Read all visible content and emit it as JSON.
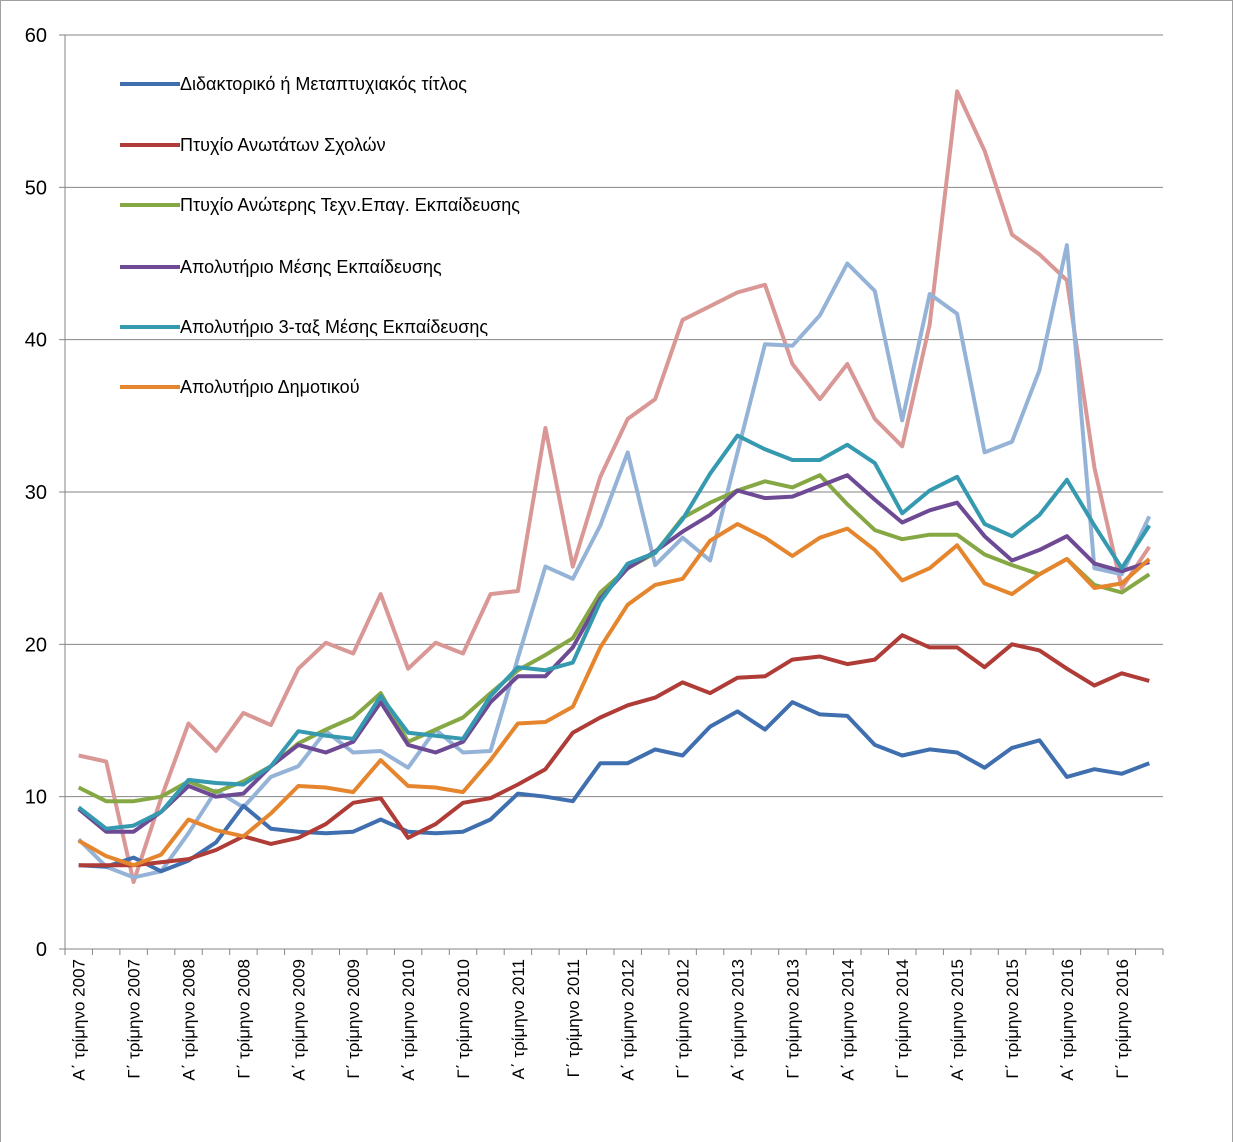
{
  "chart_data": {
    "type": "line",
    "categories": [
      "Α΄ τρίμηνο 2007",
      null,
      "Γ΄ τρίμηνο 2007",
      null,
      "Α΄ τρίμηνο 2008",
      null,
      "Γ΄ τρίμηνο 2008",
      null,
      "Α΄ τρίμηνο 2009",
      null,
      "Γ΄ τρίμηνο 2009",
      null,
      "Α΄ τρίμηνο 2010",
      null,
      "Γ΄ τρίμηνο 2010",
      null,
      "Α΄ τρίμηνο 2011",
      null,
      "Γ΄ τρίμηνο 2011",
      null,
      "Α΄ τρίμηνο 2012",
      null,
      "Γ΄ τρίμηνο 2012",
      null,
      "Α΄ τρίμηνο 2013",
      null,
      "Γ΄ τρίμηνο 2013",
      null,
      "Α΄ τρίμηνο 2014",
      null,
      "Γ΄ τρίμηνο 2014",
      null,
      "Α΄ τρίμηνο 2015",
      null,
      "Γ΄ τρίμηνο 2015",
      null,
      "Α΄ τρίμηνο 2016",
      null,
      "Γ΄ τρίμηνο 2016",
      null
    ],
    "series": [
      {
        "name": "Διδακτορικό ή Μεταπτυχιακός τίτλος",
        "color": "#3f6faf",
        "values": [
          5.5,
          5.4,
          6.0,
          5.1,
          5.8,
          7.0,
          9.4,
          7.9,
          7.7,
          7.6,
          7.7,
          8.5,
          7.7,
          7.6,
          7.7,
          8.5,
          10.2,
          10.0,
          9.7,
          12.2,
          12.2,
          13.1,
          12.7,
          14.6,
          15.6,
          14.4,
          16.2,
          15.4,
          15.3,
          13.4,
          12.7,
          13.1,
          12.9,
          11.9,
          13.2,
          13.7,
          11.3,
          11.8,
          11.5,
          12.2
        ]
      },
      {
        "name": "Πτυχίο Ανωτάτων Σχολών",
        "color": "#b03c38",
        "values": [
          5.5,
          5.5,
          5.5,
          5.7,
          5.9,
          6.5,
          7.4,
          6.9,
          7.3,
          8.2,
          9.6,
          9.9,
          7.3,
          8.2,
          9.6,
          9.9,
          10.8,
          11.8,
          14.2,
          15.2,
          16.0,
          16.5,
          17.5,
          16.8,
          17.8,
          17.9,
          19.0,
          19.2,
          18.7,
          19.0,
          20.6,
          19.8,
          19.8,
          18.5,
          20.0,
          19.6,
          18.4,
          17.3,
          18.1,
          17.6
        ]
      },
      {
        "name": "Πτυχίο Ανώτερης Τεχν.Επαγ. Εκπαίδευσης",
        "color": "#86a844",
        "values": [
          10.6,
          9.7,
          9.7,
          10.0,
          11.0,
          10.3,
          11.0,
          12.0,
          13.5,
          14.4,
          15.2,
          16.8,
          13.6,
          14.4,
          15.2,
          16.8,
          18.3,
          19.3,
          20.4,
          23.4,
          25.0,
          26.0,
          28.3,
          29.3,
          30.1,
          30.7,
          30.3,
          31.1,
          29.2,
          27.5,
          26.9,
          27.2,
          27.2,
          25.9,
          25.2,
          24.6,
          25.6,
          23.9,
          23.4,
          24.6
        ]
      },
      {
        "name": "Απολυτήριο Μέσης Εκπαίδευσης",
        "color": "#6e4a94",
        "values": [
          9.2,
          7.7,
          7.7,
          9.0,
          10.7,
          10.0,
          10.2,
          12.0,
          13.4,
          12.9,
          13.6,
          16.2,
          13.4,
          12.9,
          13.6,
          16.2,
          17.9,
          17.9,
          19.8,
          23.0,
          25.0,
          26.1,
          27.4,
          28.5,
          30.1,
          29.6,
          29.7,
          30.4,
          31.1,
          29.5,
          28.0,
          28.8,
          29.3,
          27.1,
          25.5,
          26.2,
          27.1,
          25.3,
          24.8,
          25.4
        ]
      },
      {
        "name": "Απολυτήριο 3-ταξ Μέσης Εκπαίδευσης",
        "color": "#3599b0",
        "values": [
          9.3,
          7.9,
          8.1,
          9.0,
          11.1,
          10.9,
          10.8,
          12.0,
          14.3,
          14.0,
          13.8,
          16.6,
          14.2,
          14.0,
          13.8,
          16.6,
          18.5,
          18.3,
          18.8,
          22.8,
          25.3,
          26.0,
          28.2,
          31.2,
          33.7,
          32.8,
          32.1,
          32.1,
          33.1,
          31.9,
          28.6,
          30.1,
          31.0,
          27.9,
          27.1,
          28.5,
          30.8,
          27.8,
          25.0,
          27.8
        ]
      },
      {
        "name": "Απολυτήριο Δημοτικού",
        "color": "#e5862f",
        "values": [
          7.1,
          6.1,
          5.5,
          6.2,
          8.5,
          7.8,
          7.4,
          8.9,
          10.7,
          10.6,
          10.3,
          12.4,
          10.7,
          10.6,
          10.3,
          12.4,
          14.8,
          14.9,
          15.9,
          19.8,
          22.6,
          23.9,
          24.3,
          26.8,
          27.9,
          27.0,
          25.8,
          27.0,
          27.6,
          26.2,
          24.2,
          25.0,
          26.5,
          24.0,
          23.3,
          24.6,
          25.6,
          23.7,
          24.0,
          25.6
        ]
      },
      {
        "color": "#d99795",
        "values": [
          12.7,
          12.3,
          4.4,
          9.9,
          14.8,
          13.0,
          15.5,
          14.7,
          18.4,
          20.1,
          19.4,
          23.3,
          18.4,
          20.1,
          19.4,
          23.3,
          23.5,
          34.2,
          25.1,
          31.0,
          34.8,
          36.1,
          41.3,
          42.2,
          43.1,
          43.6,
          38.4,
          36.1,
          38.4,
          34.8,
          33.0,
          41.0,
          56.3,
          52.4,
          46.9,
          45.6,
          43.9,
          31.6,
          23.7,
          26.4
        ]
      },
      {
        "color": "#95b3d7",
        "values": [
          7.2,
          5.4,
          4.7,
          5.1,
          7.6,
          10.4,
          9.3,
          11.3,
          12.0,
          14.3,
          12.9,
          13.0,
          11.9,
          14.4,
          12.9,
          13.0,
          19.1,
          25.1,
          24.3,
          27.8,
          32.6,
          25.2,
          27.0,
          25.5,
          32.6,
          39.7,
          39.6,
          41.6,
          45.0,
          43.2,
          34.7,
          43.0,
          41.7,
          32.6,
          33.3,
          38.0,
          46.2,
          25.0,
          24.6,
          28.4
        ]
      }
    ],
    "ylim": [
      0,
      60
    ],
    "yticks": [
      0,
      10,
      20,
      30,
      40,
      50,
      60
    ],
    "grid": true
  }
}
